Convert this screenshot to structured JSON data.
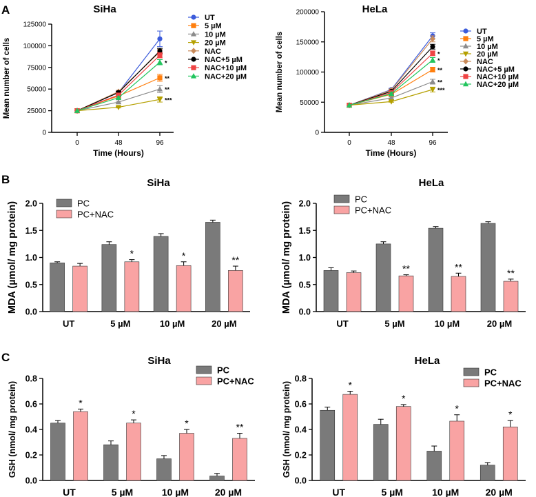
{
  "colors": {
    "pc": "#7a7a7a",
    "pcnac": "#f9a3a3",
    "axis": "#000000",
    "err": "#000000"
  },
  "panel_labels": [
    "A",
    "B",
    "C"
  ],
  "chart_data": [
    {
      "id": "A1",
      "type": "line",
      "title": "SiHa",
      "xlabel": "Time (Hours)",
      "ylabel": "Mean number of cells",
      "x": [
        0,
        48,
        96
      ],
      "xticks": [
        "0",
        "48",
        "96"
      ],
      "ylim": [
        0,
        125000
      ],
      "yticks": [
        0,
        25000,
        50000,
        75000,
        100000,
        125000
      ],
      "ytick_labels": [
        "0",
        "25000",
        "50000",
        "75000",
        "100000",
        "125000"
      ],
      "legend_position": "right",
      "series": [
        {
          "name": "UT",
          "color": "#3b5bdb",
          "marker": "circle",
          "values": [
            25000,
            46000,
            108000
          ],
          "err": [
            0,
            1500,
            9000
          ],
          "sig": ""
        },
        {
          "name": "5 µM",
          "color": "#ff7f0e",
          "marker": "square",
          "values": [
            25000,
            42000,
            63000
          ],
          "err": [
            0,
            1200,
            4000
          ],
          "sig": "**"
        },
        {
          "name": "10 µM",
          "color": "#8c8c8c",
          "marker": "triangle",
          "values": [
            25000,
            35000,
            50000
          ],
          "err": [
            0,
            1000,
            4000
          ],
          "sig": "**"
        },
        {
          "name": "20 µM",
          "color": "#b5a000",
          "marker": "triangle-down",
          "values": [
            25000,
            29000,
            38000
          ],
          "err": [
            0,
            800,
            3000
          ],
          "sig": "***"
        },
        {
          "name": "NAC",
          "color": "#c98b5a",
          "marker": "diamond",
          "values": [
            25000,
            47000,
            93000
          ],
          "err": [
            0,
            1500,
            3000
          ],
          "sig": ""
        },
        {
          "name": "NAC+5 µM",
          "color": "#000000",
          "marker": "circle",
          "values": [
            25000,
            46000,
            94000
          ],
          "err": [
            0,
            1500,
            3000
          ],
          "sig": ""
        },
        {
          "name": "NAC+10 µM",
          "color": "#ef4444",
          "marker": "square",
          "values": [
            25000,
            43000,
            89000
          ],
          "err": [
            0,
            1200,
            3000
          ],
          "sig": ""
        },
        {
          "name": "NAC+20 µM",
          "color": "#22c55e",
          "marker": "triangle",
          "values": [
            25000,
            40000,
            81000
          ],
          "err": [
            0,
            1200,
            3000
          ],
          "sig": "*"
        }
      ]
    },
    {
      "id": "A2",
      "type": "line",
      "title": "HeLa",
      "xlabel": "Time (Hours)",
      "ylabel": "Mean number of cells",
      "x": [
        0,
        48,
        96
      ],
      "xticks": [
        "0",
        "48",
        "96"
      ],
      "ylim": [
        0,
        200000
      ],
      "yticks": [
        0,
        50000,
        100000,
        150000,
        200000
      ],
      "ytick_labels": [
        "0",
        "50000",
        "100000",
        "150000",
        "200000"
      ],
      "legend_position": "right",
      "series": [
        {
          "name": "UT",
          "color": "#3b5bdb",
          "marker": "circle",
          "values": [
            45000,
            71000,
            160000
          ],
          "err": [
            0,
            2000,
            5000
          ],
          "sig": ""
        },
        {
          "name": "5 µM",
          "color": "#ff7f0e",
          "marker": "square",
          "values": [
            45000,
            63000,
            104000
          ],
          "err": [
            0,
            1500,
            4000
          ],
          "sig": "**"
        },
        {
          "name": "10 µM",
          "color": "#8c8c8c",
          "marker": "triangle",
          "values": [
            45000,
            57000,
            84000
          ],
          "err": [
            0,
            1500,
            4000
          ],
          "sig": "**"
        },
        {
          "name": "20 µM",
          "color": "#b5a000",
          "marker": "triangle-down",
          "values": [
            45000,
            51000,
            71000
          ],
          "err": [
            0,
            1000,
            4000
          ],
          "sig": "***"
        },
        {
          "name": "NAC",
          "color": "#c98b5a",
          "marker": "diamond",
          "values": [
            45000,
            70000,
            155000
          ],
          "err": [
            0,
            2000,
            5000
          ],
          "sig": ""
        },
        {
          "name": "NAC+5 µM",
          "color": "#000000",
          "marker": "circle",
          "values": [
            45000,
            68000,
            142000
          ],
          "err": [
            0,
            2000,
            4000
          ],
          "sig": ""
        },
        {
          "name": "NAC+10 µM",
          "color": "#ef4444",
          "marker": "square",
          "values": [
            45000,
            66000,
            131000
          ],
          "err": [
            0,
            2000,
            4000
          ],
          "sig": "*"
        },
        {
          "name": "NAC+20 µM",
          "color": "#22c55e",
          "marker": "triangle",
          "values": [
            45000,
            64000,
            120000
          ],
          "err": [
            0,
            2000,
            4000
          ],
          "sig": "*"
        }
      ]
    },
    {
      "id": "B1",
      "type": "bar",
      "title": "SiHa",
      "xlabel": "",
      "ylabel": "MDA (µmol/ mg protein)",
      "categories": [
        "UT",
        "5 µM",
        "10 µM",
        "20 µM"
      ],
      "ylim": [
        0,
        2.0
      ],
      "yticks": [
        0,
        0.5,
        1.0,
        1.5,
        2.0
      ],
      "ytick_labels": [
        "0.0",
        "0.5",
        "1.0",
        "1.5",
        "2.0"
      ],
      "legend_position": "top-left",
      "series": [
        {
          "name": "PC",
          "values": [
            0.9,
            1.24,
            1.39,
            1.65
          ],
          "err": [
            0.02,
            0.05,
            0.05,
            0.04
          ],
          "sig": [
            "",
            "",
            "",
            ""
          ]
        },
        {
          "name": "PC+NAC",
          "values": [
            0.84,
            0.92,
            0.85,
            0.76
          ],
          "err": [
            0.05,
            0.04,
            0.07,
            0.08
          ],
          "sig": [
            "",
            "*",
            "*",
            "**"
          ]
        }
      ]
    },
    {
      "id": "B2",
      "type": "bar",
      "title": "HeLa",
      "xlabel": "",
      "ylabel": "MDA (µmol/ mg protein)",
      "categories": [
        "UT",
        "5 µM",
        "10 µM",
        "20 µM"
      ],
      "ylim": [
        0,
        2.0
      ],
      "yticks": [
        0,
        0.5,
        1.0,
        1.5,
        2.0
      ],
      "ytick_labels": [
        "0.0",
        "0.5",
        "1.0",
        "1.5",
        "2.0"
      ],
      "legend_position": "top-left",
      "series": [
        {
          "name": "PC",
          "values": [
            0.76,
            1.25,
            1.54,
            1.63
          ],
          "err": [
            0.05,
            0.04,
            0.03,
            0.03
          ],
          "sig": [
            "",
            "",
            "",
            ""
          ]
        },
        {
          "name": "PC+NAC",
          "values": [
            0.72,
            0.66,
            0.65,
            0.56
          ],
          "err": [
            0.03,
            0.02,
            0.06,
            0.04
          ],
          "sig": [
            "",
            "**",
            "**",
            "**"
          ]
        }
      ]
    },
    {
      "id": "C1",
      "type": "bar",
      "title": "SiHa",
      "xlabel": "",
      "ylabel": "GSH (nmol/ mg protein)",
      "categories": [
        "UT",
        "5 µM",
        "10 µM",
        "20 µM"
      ],
      "ylim": [
        0,
        0.8
      ],
      "yticks": [
        0,
        0.2,
        0.4,
        0.6,
        0.8
      ],
      "ytick_labels": [
        "0.0",
        "0.2",
        "0.4",
        "0.6",
        "0.8"
      ],
      "legend_position": "top-right",
      "series": [
        {
          "name": "PC",
          "values": [
            0.45,
            0.28,
            0.17,
            0.035
          ],
          "err": [
            0.02,
            0.03,
            0.025,
            0.02
          ],
          "sig": [
            "",
            "",
            "",
            ""
          ]
        },
        {
          "name": "PC+NAC",
          "values": [
            0.54,
            0.45,
            0.37,
            0.33
          ],
          "err": [
            0.02,
            0.025,
            0.03,
            0.04
          ],
          "sig": [
            "*",
            "*",
            "*",
            "**"
          ]
        }
      ]
    },
    {
      "id": "C2",
      "type": "bar",
      "title": "HeLa",
      "xlabel": "",
      "ylabel": "GSH (nmol/ mg protein)",
      "categories": [
        "UT",
        "5 µM",
        "10 µM",
        "20 µM"
      ],
      "ylim": [
        0,
        0.8
      ],
      "yticks": [
        0,
        0.2,
        0.4,
        0.6,
        0.8
      ],
      "ytick_labels": [
        "0.0",
        "0.2",
        "0.4",
        "0.6",
        "0.8"
      ],
      "legend_position": "top-right",
      "series": [
        {
          "name": "PC",
          "values": [
            0.55,
            0.44,
            0.23,
            0.12
          ],
          "err": [
            0.025,
            0.04,
            0.04,
            0.02
          ],
          "sig": [
            "",
            "",
            "",
            ""
          ]
        },
        {
          "name": "PC+NAC",
          "values": [
            0.675,
            0.58,
            0.465,
            0.42
          ],
          "err": [
            0.025,
            0.015,
            0.05,
            0.05
          ],
          "sig": [
            "*",
            "*",
            "*",
            "*"
          ]
        }
      ]
    }
  ]
}
